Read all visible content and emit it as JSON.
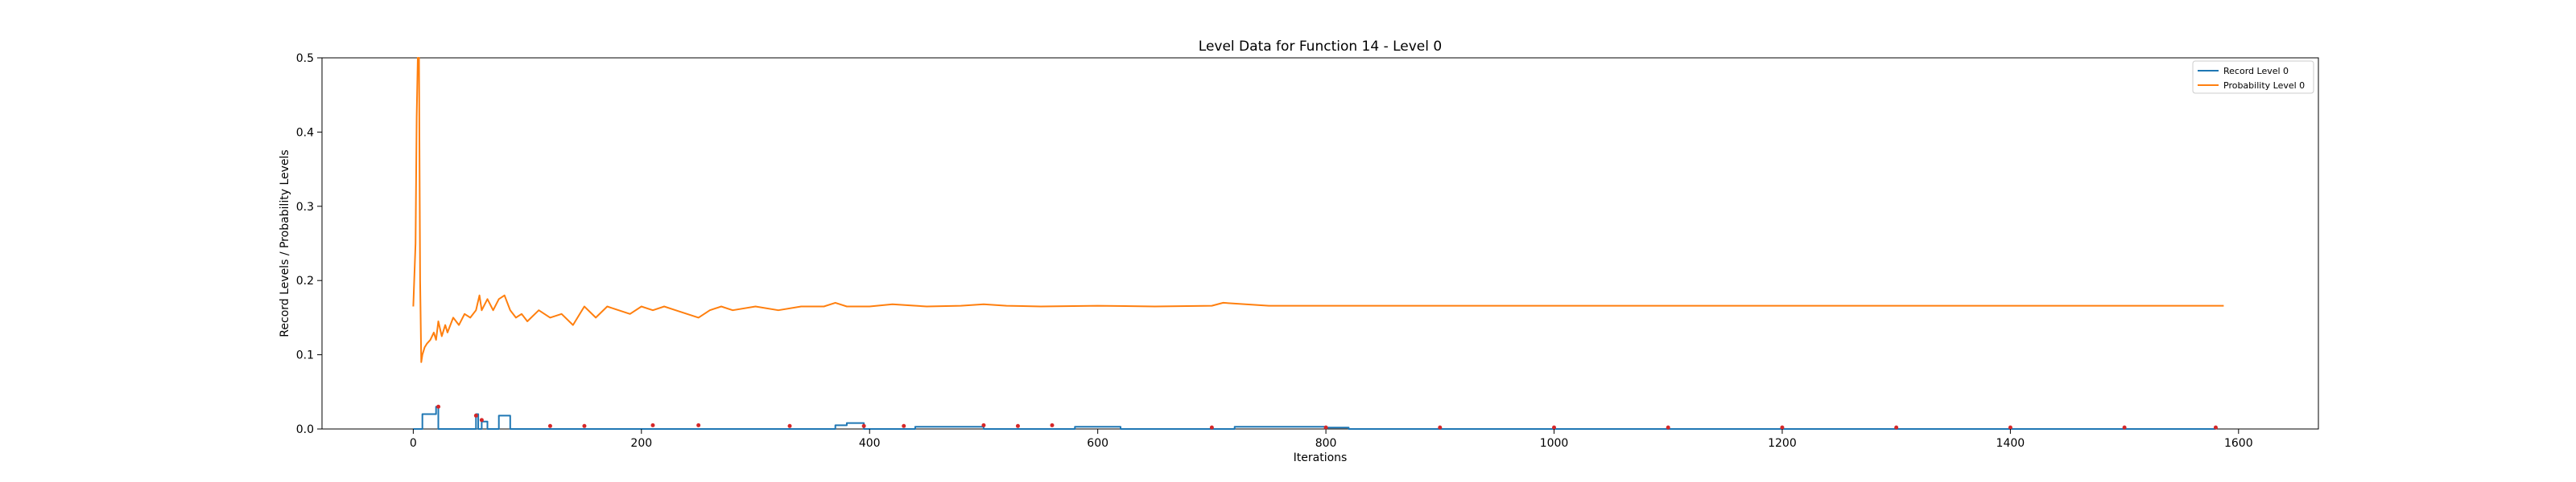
{
  "chart_data": {
    "type": "line",
    "title": "Level Data for Function 14 - Level 0",
    "xlabel": "Iterations",
    "ylabel": "Record Levels / Probability Levels",
    "xlim": [
      -80,
      1670
    ],
    "ylim": [
      0,
      0.5
    ],
    "xticks": [
      0,
      200,
      400,
      600,
      800,
      1000,
      1200,
      1400,
      1600
    ],
    "xtick_labels": [
      "0",
      "200",
      "400",
      "600",
      "800",
      "1000",
      "1200",
      "1400",
      "1600"
    ],
    "yticks": [
      0.0,
      0.1,
      0.2,
      0.3,
      0.4,
      0.5
    ],
    "ytick_labels": [
      "0.0",
      "0.1",
      "0.2",
      "0.3",
      "0.4",
      "0.5"
    ],
    "grid": false,
    "legend_position": "top-right",
    "series": [
      {
        "name": "Record Level 0",
        "color": "#1f77b4",
        "style": "step",
        "x": [
          0,
          8,
          15,
          20,
          22,
          55,
          57,
          60,
          65,
          75,
          80,
          85,
          90,
          120,
          150,
          210,
          215,
          330,
          370,
          380,
          390,
          395,
          440,
          470,
          500,
          560,
          580,
          620,
          700,
          720,
          780,
          800,
          820,
          900,
          1000,
          1100,
          1200,
          1300,
          1400,
          1500,
          1580
        ],
        "y": [
          0,
          0.02,
          0.02,
          0.03,
          0,
          0.02,
          0,
          0.01,
          0,
          0.018,
          0.018,
          0,
          0,
          0,
          0,
          0,
          0,
          0,
          0.005,
          0.008,
          0.008,
          0,
          0.003,
          0.003,
          0,
          0,
          0.003,
          0,
          0,
          0.003,
          0.003,
          0.002,
          0,
          0,
          0,
          0,
          0,
          0,
          0,
          0,
          0
        ]
      },
      {
        "name": "Probability Level 0",
        "color": "#ff7f0e",
        "style": "line",
        "x": [
          0,
          2,
          3,
          4,
          5,
          6,
          7,
          8,
          10,
          12,
          15,
          18,
          20,
          22,
          25,
          28,
          30,
          35,
          40,
          45,
          50,
          55,
          58,
          60,
          65,
          70,
          75,
          80,
          85,
          90,
          95,
          100,
          110,
          120,
          130,
          140,
          150,
          160,
          170,
          180,
          190,
          200,
          210,
          220,
          230,
          240,
          250,
          260,
          270,
          280,
          300,
          320,
          340,
          360,
          370,
          380,
          400,
          420,
          450,
          480,
          500,
          520,
          550,
          600,
          650,
          700,
          710,
          750,
          800,
          900,
          1000,
          1100,
          1200,
          1300,
          1400,
          1500,
          1587
        ],
        "y": [
          0.165,
          0.25,
          0.42,
          0.5,
          0.5,
          0.2,
          0.09,
          0.1,
          0.11,
          0.115,
          0.12,
          0.13,
          0.12,
          0.145,
          0.125,
          0.14,
          0.13,
          0.15,
          0.14,
          0.155,
          0.15,
          0.16,
          0.18,
          0.16,
          0.175,
          0.16,
          0.175,
          0.18,
          0.16,
          0.15,
          0.155,
          0.145,
          0.16,
          0.15,
          0.155,
          0.14,
          0.165,
          0.15,
          0.165,
          0.16,
          0.155,
          0.165,
          0.16,
          0.165,
          0.16,
          0.155,
          0.15,
          0.16,
          0.165,
          0.16,
          0.165,
          0.16,
          0.165,
          0.165,
          0.17,
          0.165,
          0.165,
          0.168,
          0.165,
          0.166,
          0.168,
          0.166,
          0.165,
          0.166,
          0.165,
          0.166,
          0.17,
          0.166,
          0.166,
          0.166,
          0.166,
          0.166,
          0.166,
          0.166,
          0.166,
          0.166,
          0.166
        ]
      }
    ],
    "record_markers": {
      "color": "#d62728",
      "x": [
        22,
        55,
        60,
        120,
        150,
        210,
        250,
        330,
        395,
        430,
        500,
        530,
        560,
        700,
        800,
        900,
        1000,
        1100,
        1200,
        1300,
        1400,
        1500,
        1580
      ],
      "y": [
        0.03,
        0.018,
        0.012,
        0.004,
        0.004,
        0.005,
        0.005,
        0.004,
        0.004,
        0.004,
        0.005,
        0.004,
        0.005,
        0.002,
        0.002,
        0.002,
        0.002,
        0.002,
        0.002,
        0.002,
        0.002,
        0.002,
        0.002
      ]
    }
  }
}
